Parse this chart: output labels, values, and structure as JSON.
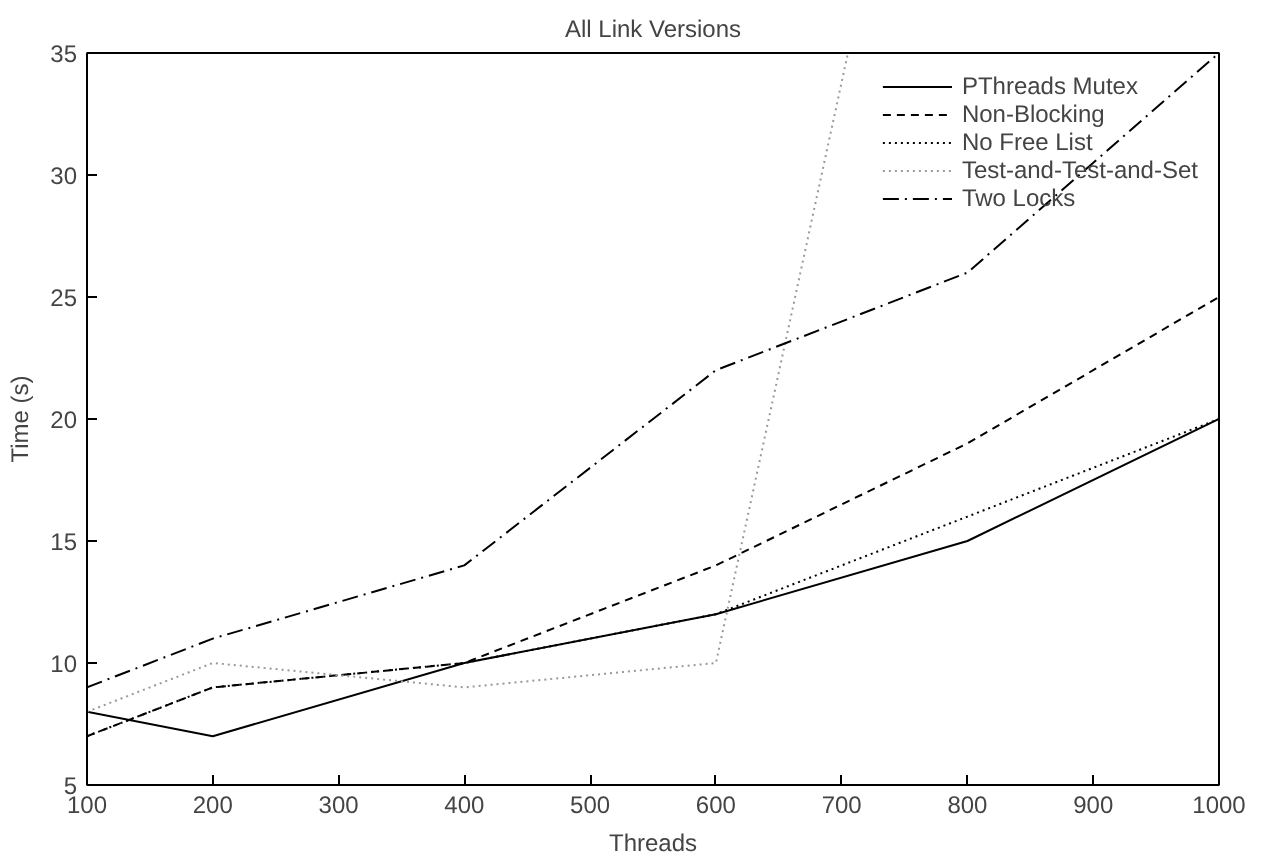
{
  "chart_data": {
    "type": "line",
    "title": "All Link Versions",
    "xlabel": "Threads",
    "ylabel": "Time (s)",
    "x": [
      100,
      200,
      400,
      600,
      800,
      1000
    ],
    "series": [
      {
        "name": "PThreads Mutex",
        "color": "#000000",
        "line_style": "solid",
        "values": [
          8,
          7,
          10,
          12,
          15,
          20
        ]
      },
      {
        "name": "Non-Blocking",
        "color": "#000000",
        "line_style": "dashed",
        "values": [
          7,
          9,
          10,
          14,
          19,
          25
        ]
      },
      {
        "name": "No Free List",
        "color": "#000000",
        "line_style": "dotted",
        "values": [
          7,
          9,
          10,
          12,
          16,
          20
        ]
      },
      {
        "name": "Test-and-Test-and-Set",
        "color": "#999999",
        "line_style": "dotted",
        "x": [
          100,
          200,
          400,
          600,
          705
        ],
        "values": [
          8,
          10,
          9,
          10,
          35
        ]
      },
      {
        "name": "Two Locks",
        "color": "#000000",
        "line_style": "dashdot",
        "values": [
          9,
          11,
          14,
          22,
          26,
          35
        ]
      }
    ],
    "xlim": [
      100,
      1000
    ],
    "ylim": [
      5,
      35
    ],
    "xticks": [
      100,
      200,
      300,
      400,
      500,
      600,
      700,
      800,
      900,
      1000
    ],
    "yticks": [
      5,
      10,
      15,
      20,
      25,
      30,
      35
    ],
    "grid": false,
    "legend": "top right",
    "marker": "none"
  }
}
